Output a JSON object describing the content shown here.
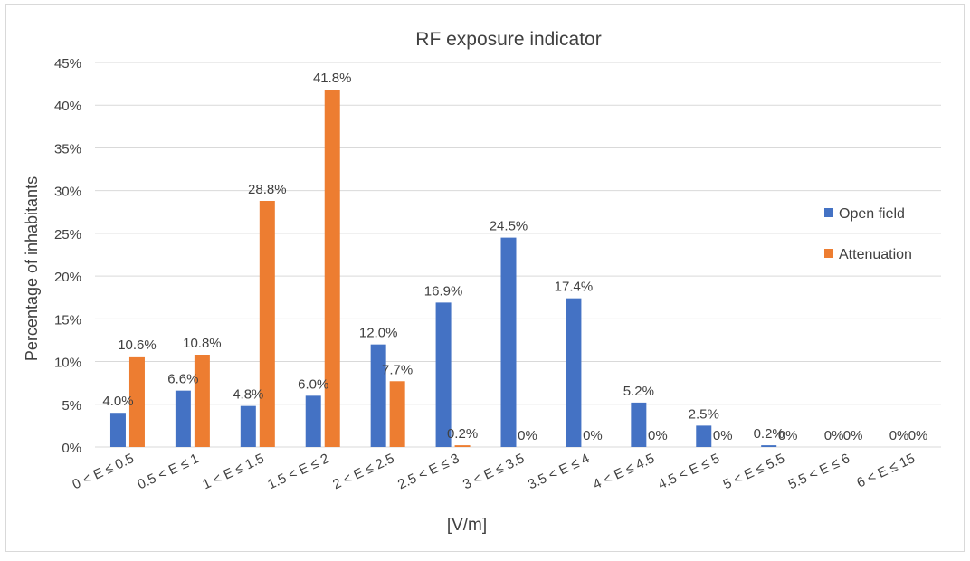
{
  "chart_data": {
    "type": "bar",
    "title": "RF exposure indicator",
    "xlabel": "[V/m]",
    "ylabel": "Percentage of inhabitants",
    "ylim": [
      0,
      45
    ],
    "yticks": [
      "0%",
      "5%",
      "10%",
      "15%",
      "20%",
      "25%",
      "30%",
      "35%",
      "40%",
      "45%"
    ],
    "grid": true,
    "legend_position": "right",
    "categories": [
      "0 < E ≤ 0.5",
      "0.5 < E ≤ 1",
      "1 < E ≤ 1.5",
      "1.5 < E ≤ 2",
      "2 < E ≤ 2.5",
      "2.5 < E ≤ 3",
      "3 < E ≤ 3.5",
      "3.5 < E ≤ 4",
      "4 < E ≤ 4.5",
      "4.5 < E ≤ 5",
      "5 < E ≤ 5.5",
      "5.5 < E ≤ 6",
      "6 < E ≤ 15"
    ],
    "series": [
      {
        "name": "Open field",
        "color": "#4472C4",
        "values": [
          4.0,
          6.6,
          4.8,
          6.0,
          12.0,
          16.9,
          24.5,
          17.4,
          5.2,
          2.5,
          0.2,
          0,
          0
        ],
        "labels": [
          "4.0%",
          "6.6%",
          "4.8%",
          "6.0%",
          "12.0%",
          "16.9%",
          "24.5%",
          "17.4%",
          "5.2%",
          "2.5%",
          "0.2%",
          "0%",
          "0%"
        ]
      },
      {
        "name": "Attenuation",
        "color": "#ED7D31",
        "values": [
          10.6,
          10.8,
          28.8,
          41.8,
          7.7,
          0.2,
          0,
          0,
          0,
          0,
          0,
          0,
          0
        ],
        "labels": [
          "10.6%",
          "10.8%",
          "28.8%",
          "41.8%",
          "7.7%",
          "0.2%",
          "0%",
          "0%",
          "0%",
          "0%",
          "0%",
          "0%",
          "0%"
        ]
      }
    ]
  }
}
